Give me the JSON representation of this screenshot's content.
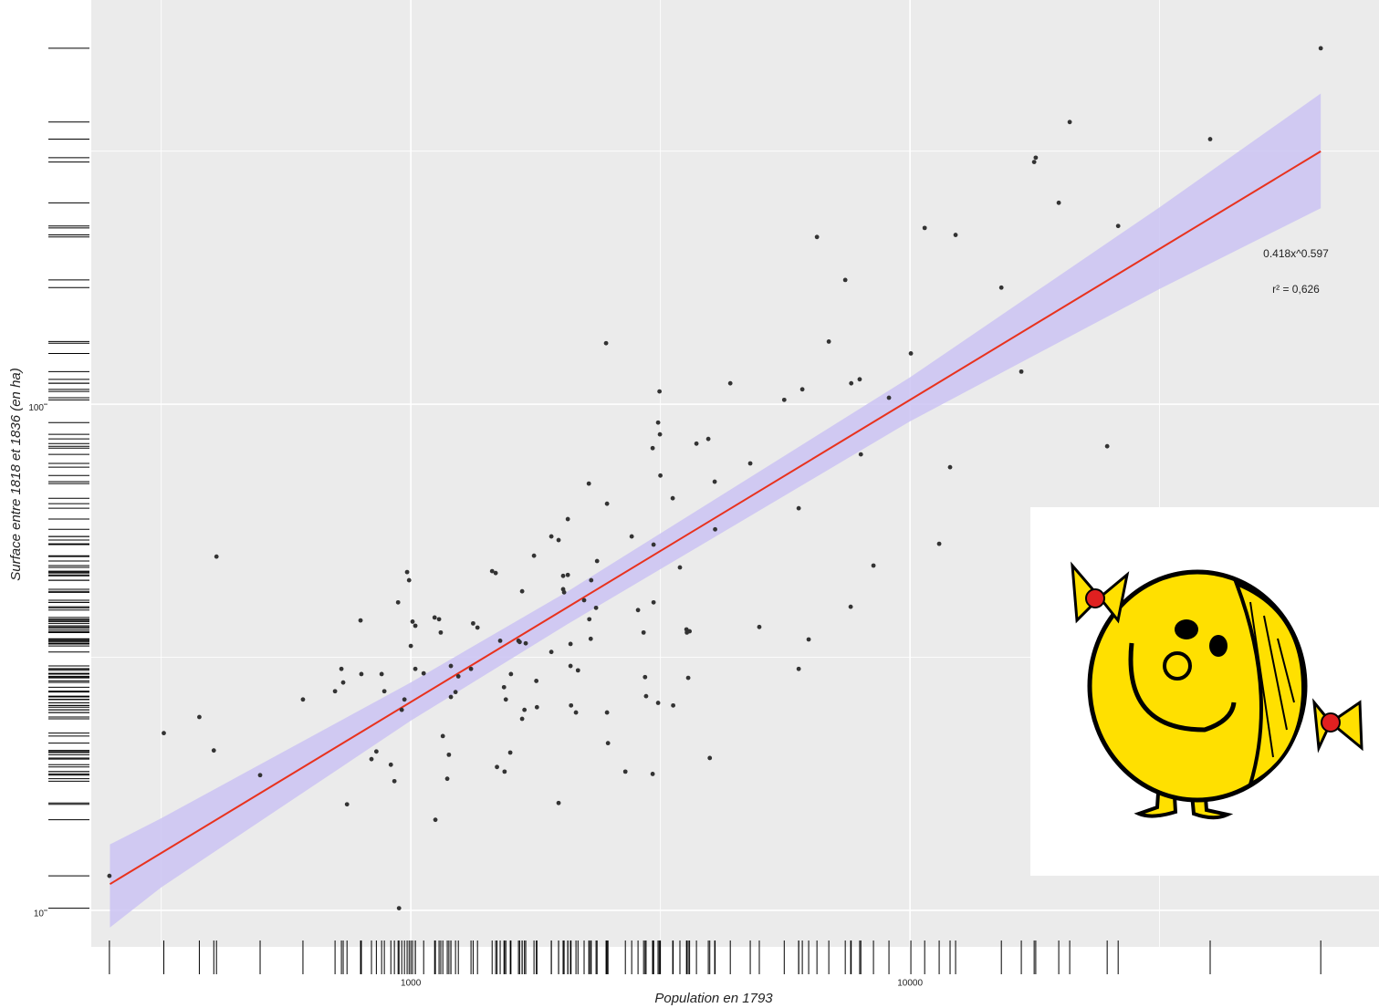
{
  "chart_data": {
    "type": "scatter",
    "xlabel": "Population en 1793",
    "ylabel": "Surface entre 1818 et 1836 (en ha)",
    "xlog": true,
    "ylog": true,
    "grid": true,
    "xlim": [
      229,
      87000
    ],
    "ylim": [
      8.47,
      629
    ],
    "xticks": [
      1000,
      10000
    ],
    "yticks": [
      10,
      100
    ],
    "annotations": [
      "0.418x^0.597",
      "r² = 0,626"
    ],
    "point_color": "#333333",
    "x": [
      249,
      320,
      377,
      403,
      408,
      499,
      608,
      705,
      726,
      732,
      745,
      793,
      796,
      834,
      853,
      874,
      885,
      912,
      927,
      943,
      947,
      959,
      971,
      983,
      992,
      1000,
      1008,
      1021,
      1021,
      1061,
      1116,
      1120,
      1139,
      1148,
      1159,
      1183,
      1192,
      1203,
      1203,
      1229,
      1245,
      1320,
      1333,
      1360,
      1455,
      1479,
      1488,
      1510,
      1537,
      1541,
      1550,
      1582,
      1587,
      1643,
      1652,
      1671,
      1671,
      1689,
      1699,
      1765,
      1784,
      1789,
      1912,
      1912,
      1977,
      1977,
      2019,
      2019,
      2028,
      2063,
      2063,
      2089,
      2089,
      2094,
      2142,
      2162,
      2224,
      2273,
      2278,
      2293,
      2298,
      2350,
      2361,
      2461,
      2472,
      2472,
      2483,
      2690,
      2770,
      2852,
      2926,
      2946,
      2960,
      3051,
      3051,
      3064,
      3064,
      3129,
      3129,
      3149,
      3155,
      3162,
      3347,
      3354,
      3460,
      3566,
      3573,
      3595,
      3618,
      3734,
      3944,
      3971,
      4062,
      4070,
      4365,
      4786,
      4990,
      5598,
      5984,
      5984,
      6085,
      6266,
      6510,
      6876,
      7418,
      7606,
      7625,
      7928,
      7971,
      8449,
      9075,
      10040,
      10700,
      11440,
      12030,
      12340,
      15240,
      16710,
      17730,
      17860,
      19860,
      20890,
      24830,
      26120,
      39930,
      66500
    ],
    "values": [
      11.7,
      22.4,
      24.1,
      20.7,
      50.0,
      18.5,
      26.1,
      27.1,
      30.0,
      28.2,
      16.2,
      37.4,
      29.3,
      19.9,
      20.6,
      29.3,
      27.1,
      19.4,
      18.0,
      40.6,
      10.1,
      24.9,
      26.1,
      46.6,
      44.9,
      33.3,
      37.2,
      36.5,
      30.0,
      29.4,
      37.9,
      15.1,
      37.6,
      35.4,
      22.1,
      18.2,
      20.3,
      30.4,
      26.4,
      27.0,
      29.0,
      30.0,
      36.9,
      36.2,
      46.8,
      46.4,
      19.2,
      34.1,
      27.6,
      18.8,
      26.1,
      20.5,
      29.3,
      34.1,
      33.9,
      23.9,
      42.7,
      24.9,
      33.7,
      50.2,
      28.4,
      25.2,
      32.4,
      54.8,
      16.3,
      53.9,
      45.8,
      43.1,
      42.5,
      46.0,
      59.3,
      33.6,
      30.4,
      25.4,
      24.6,
      29.8,
      41.0,
      69.7,
      37.6,
      34.4,
      44.9,
      39.6,
      49.0,
      132,
      63.6,
      24.6,
      21.4,
      18.8,
      54.8,
      39.2,
      35.4,
      28.9,
      26.5,
      81.9,
      18.6,
      40.6,
      52.8,
      25.7,
      92.0,
      106,
      87.2,
      72.3,
      65.2,
      25.4,
      47.6,
      35.9,
      35.4,
      28.8,
      35.6,
      83.6,
      85.4,
      20.0,
      70.3,
      56.6,
      110,
      76.4,
      36.3,
      102,
      62.3,
      30.0,
      107,
      34.3,
      214,
      133,
      176,
      39.8,
      110,
      112,
      79.6,
      48.0,
      103,
      126,
      223,
      53.0,
      75.1,
      216,
      170,
      116,
      301,
      307,
      250,
      361,
      82.6,
      225,
      334,
      505
    ],
    "fit": {
      "x": [
        249.6,
        66500
      ],
      "values": [
        11.27,
        316
      ],
      "color": "#e8321e"
    },
    "band": {
      "x": [
        249.6,
        316,
        1000,
        2063,
        10000,
        31623,
        66500
      ],
      "upper": [
        13.5,
        15.2,
        28.2,
        42.7,
        113,
        245,
        411
      ],
      "lower": [
        9.25,
        11.1,
        23.7,
        36.8,
        92.5,
        169,
        244
      ],
      "color": "#cbc3f3"
    }
  }
}
